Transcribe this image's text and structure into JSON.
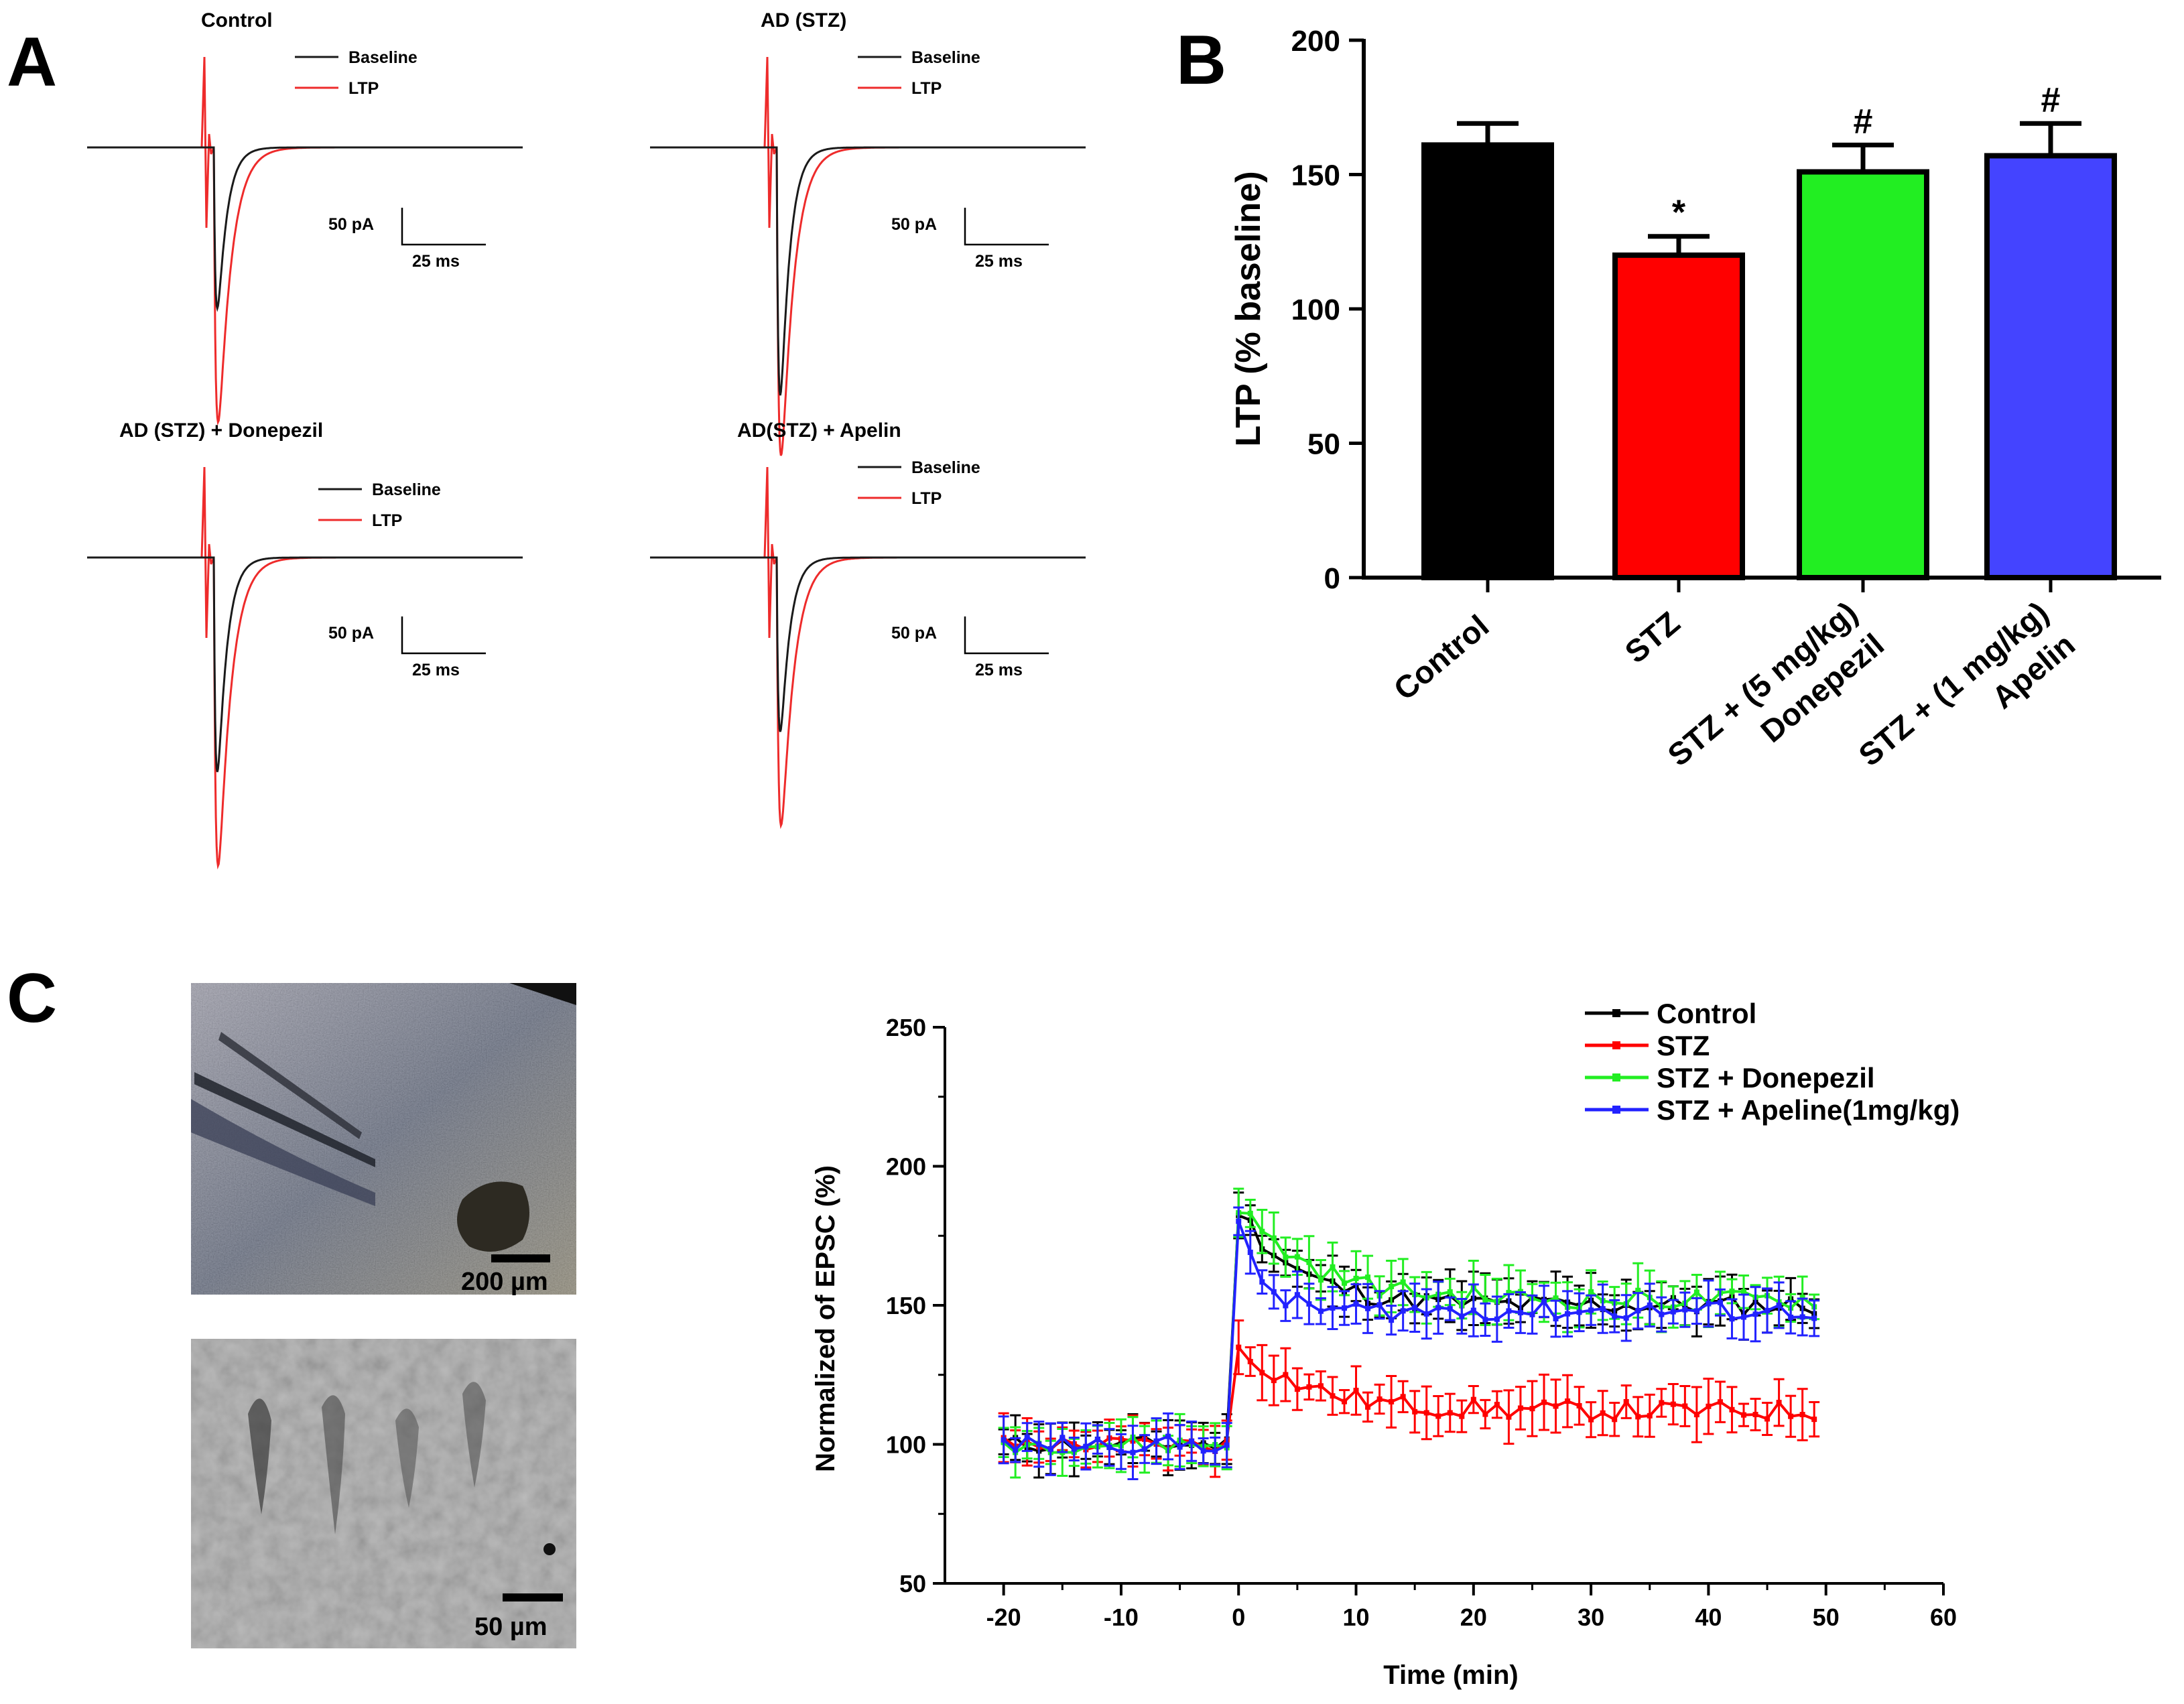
{
  "panel_letters": {
    "a": "A",
    "b": "B",
    "c": "C"
  },
  "colors": {
    "black": "#000000",
    "red": "#ff0000",
    "green": "#22ee22",
    "blue": "#2222ff",
    "bar_blue": "#4444ff",
    "trace_black": "#1a1a1a",
    "trace_red": "#ee2b2b"
  },
  "traces": {
    "legend_baseline": "Baseline",
    "legend_ltp": "LTP",
    "scale_amp": "50 pA",
    "scale_time": "25 ms",
    "panels": [
      {
        "title": "Control",
        "baseline_peak_pA": 120,
        "ltp_peak_pA": 205
      },
      {
        "title": "AD (STZ)",
        "baseline_peak_pA": 185,
        "ltp_peak_pA": 230
      },
      {
        "title": "AD (STZ) + Donepezil",
        "baseline_peak_pA": 160,
        "ltp_peak_pA": 230
      },
      {
        "title": "AD(STZ) + Apelin",
        "baseline_peak_pA": 130,
        "ltp_peak_pA": 200
      }
    ]
  },
  "images": {
    "scale_bar_low": "200 µm",
    "scale_bar_high": "50 µm"
  },
  "chart_data": [
    {
      "type": "bar",
      "ylabel": "LTP (% baseline)",
      "ylim": [
        0,
        200
      ],
      "yticks": [
        0,
        50,
        100,
        150,
        200
      ],
      "categories": [
        "Control",
        "STZ",
        "STZ + Donepezil (5 mg/kg)",
        "STZ + Apelin (1 mg/kg)"
      ],
      "category_labels": [
        [
          "Control"
        ],
        [
          "STZ"
        ],
        [
          "Donepezil",
          "STZ +  (5 mg/kg)"
        ],
        [
          "Apelin",
          "STZ +   (1 mg/kg)"
        ]
      ],
      "values": [
        161,
        120,
        151,
        157
      ],
      "errors": [
        8,
        7,
        10,
        12
      ],
      "bar_colors": [
        "#000000",
        "#ff0000",
        "#22ee22",
        "#4444ff"
      ],
      "annotations": [
        "",
        "*",
        "#",
        "#"
      ]
    },
    {
      "type": "line",
      "xlabel": "Time (min)",
      "ylabel": "Normalized of EPSC (%)",
      "xlim": [
        -25,
        60
      ],
      "ylim": [
        50,
        250
      ],
      "xticks": [
        -20,
        -10,
        0,
        10,
        20,
        30,
        40,
        50,
        60
      ],
      "yticks": [
        50,
        100,
        150,
        200,
        250
      ],
      "legend_position": "top-right",
      "series": [
        {
          "name": "Control",
          "color": "#000000",
          "baseline": 100,
          "peak": 185,
          "plateau": 150,
          "tau": 5
        },
        {
          "name": "STZ",
          "color": "#ff0000",
          "baseline": 100,
          "peak": 135,
          "plateau": 112,
          "tau": 6
        },
        {
          "name": "STZ + Donepezil",
          "color": "#22ee22",
          "baseline": 100,
          "peak": 186,
          "plateau": 152,
          "tau": 6
        },
        {
          "name": "STZ + Apeline(1mg/kg)",
          "color": "#2222ff",
          "baseline": 100,
          "peak": 178,
          "plateau": 148,
          "tau": 2
        }
      ]
    }
  ]
}
